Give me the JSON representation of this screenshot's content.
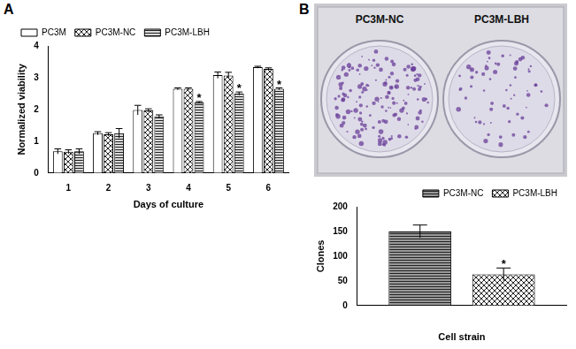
{
  "panel_labels": [
    "A",
    "B"
  ],
  "photo": {
    "labels": [
      "PC3M-NC",
      "PC3M-LBH"
    ]
  },
  "chart_data": [
    {
      "type": "bar",
      "x_label": "Days of culture",
      "y_label": "Normalized viability",
      "categories": [
        "1",
        "2",
        "3",
        "4",
        "5",
        "6"
      ],
      "series": [
        {
          "name": "PC3M",
          "color": "#ffffff",
          "values": [
            0.68,
            1.25,
            1.98,
            2.65,
            3.08,
            3.33
          ],
          "errors": [
            0.08,
            0.05,
            0.15,
            0.03,
            0.1,
            0.03
          ]
        },
        {
          "name": "PC3M-NC",
          "color": "#ffffff",
          "values": [
            0.67,
            1.22,
            1.97,
            2.65,
            3.07,
            3.28
          ],
          "errors": [
            0.06,
            0.05,
            0.05,
            0.03,
            0.1,
            0.03
          ]
        },
        {
          "name": "PC3M-LBH",
          "color": "#d9d9d9",
          "values": [
            0.68,
            1.25,
            1.78,
            2.22,
            2.5,
            2.65
          ],
          "errors": [
            0.08,
            0.15,
            0.05,
            0.03,
            0.05,
            0.03
          ],
          "annotations": [
            null,
            null,
            null,
            "*",
            "*",
            "*"
          ]
        }
      ],
      "ylim": [
        0,
        4
      ],
      "yticks": [
        0,
        1,
        2,
        3,
        4
      ],
      "grid": false,
      "legend": "upper left"
    },
    {
      "type": "bar",
      "x_label": "Cell strain",
      "y_label": "Clones",
      "categories": [
        null
      ],
      "series": [
        {
          "name": "PC3M-NC",
          "color": "#9a9a9a",
          "values": [
            150
          ],
          "errors": [
            13
          ]
        },
        {
          "name": "PC3M-LBH",
          "color": "#ffffff",
          "values": [
            63
          ],
          "errors": [
            13
          ],
          "annotations": [
            "*"
          ]
        }
      ],
      "ylim": [
        0,
        200
      ],
      "yticks": [
        0,
        50,
        100,
        150,
        200
      ],
      "grid": false,
      "legend": "upper right"
    }
  ]
}
